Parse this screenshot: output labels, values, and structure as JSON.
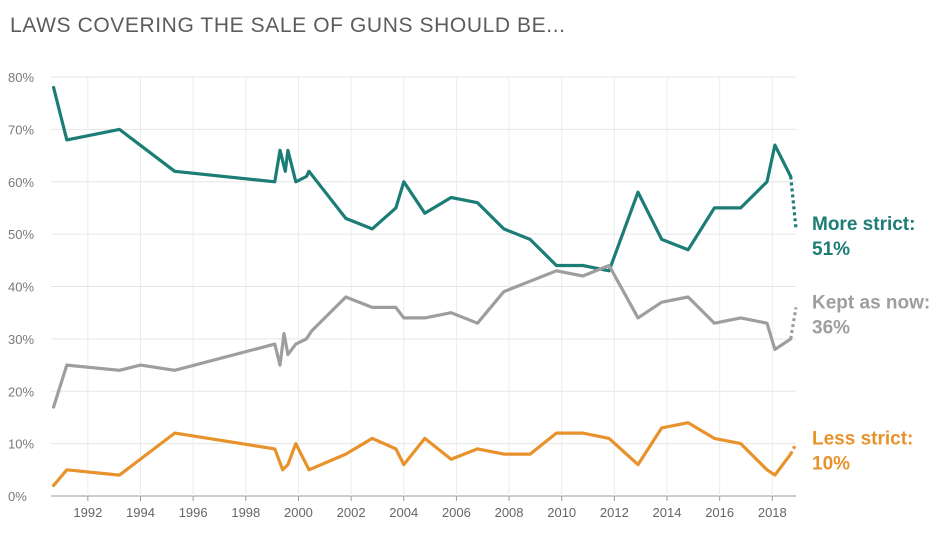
{
  "chart_data": {
    "type": "line",
    "title": "LAWS COVERING THE SALE OF GUNS SHOULD BE...",
    "xlabel": "",
    "ylabel": "",
    "xlim": [
      1990.6,
      2018.9
    ],
    "ylim": [
      0,
      80
    ],
    "y_ticks": [
      "0%",
      "10%",
      "20%",
      "30%",
      "40%",
      "50%",
      "60%",
      "70%",
      "80%"
    ],
    "x_ticks": [
      "1992",
      "1994",
      "1996",
      "1998",
      "2000",
      "2002",
      "2004",
      "2006",
      "2008",
      "2010",
      "2012",
      "2014",
      "2016",
      "2018"
    ],
    "series": [
      {
        "name": "More strict",
        "color": "#1c7c76",
        "points": [
          [
            1990.7,
            78
          ],
          [
            1991.2,
            68
          ],
          [
            1993.2,
            70
          ],
          [
            1995.3,
            62
          ],
          [
            1999.1,
            60
          ],
          [
            1999.3,
            66
          ],
          [
            1999.5,
            62
          ],
          [
            1999.6,
            66
          ],
          [
            1999.9,
            60
          ],
          [
            2000.3,
            61
          ],
          [
            2000.4,
            62
          ],
          [
            2001.8,
            53
          ],
          [
            2002.8,
            51
          ],
          [
            2003.7,
            55
          ],
          [
            2004.0,
            60
          ],
          [
            2004.8,
            54
          ],
          [
            2005.8,
            57
          ],
          [
            2006.8,
            56
          ],
          [
            2007.8,
            51
          ],
          [
            2008.8,
            49
          ],
          [
            2009.8,
            44
          ],
          [
            2010.8,
            44
          ],
          [
            2011.8,
            43
          ],
          [
            2012.9,
            58
          ],
          [
            2013.8,
            49
          ],
          [
            2014.8,
            47
          ],
          [
            2015.8,
            55
          ],
          [
            2016.8,
            55
          ],
          [
            2017.8,
            60
          ],
          [
            2018.1,
            67
          ],
          [
            2018.7,
            61
          ]
        ],
        "projected": [
          [
            2018.7,
            61
          ],
          [
            2018.9,
            51
          ]
        ],
        "end_label": "More strict:",
        "end_value": "51%"
      },
      {
        "name": "Kept as now",
        "color": "#9e9e9e",
        "points": [
          [
            1990.7,
            17
          ],
          [
            1991.2,
            25
          ],
          [
            1993.2,
            24
          ],
          [
            1994.0,
            25
          ],
          [
            1995.3,
            24
          ],
          [
            1999.1,
            29
          ],
          [
            1999.3,
            25
          ],
          [
            1999.45,
            31
          ],
          [
            1999.6,
            27
          ],
          [
            1999.9,
            29
          ],
          [
            2000.3,
            30
          ],
          [
            2000.5,
            31.5
          ],
          [
            2001.8,
            38
          ],
          [
            2002.8,
            36
          ],
          [
            2003.7,
            36
          ],
          [
            2004.0,
            34
          ],
          [
            2004.8,
            34
          ],
          [
            2005.8,
            35
          ],
          [
            2006.8,
            33
          ],
          [
            2007.8,
            39
          ],
          [
            2009.8,
            43
          ],
          [
            2010.8,
            42
          ],
          [
            2011.8,
            44
          ],
          [
            2012.9,
            34
          ],
          [
            2013.8,
            37
          ],
          [
            2014.8,
            38
          ],
          [
            2015.8,
            33
          ],
          [
            2016.8,
            34
          ],
          [
            2017.8,
            33
          ],
          [
            2018.1,
            28
          ],
          [
            2018.7,
            30
          ]
        ],
        "projected": [
          [
            2018.7,
            30
          ],
          [
            2018.9,
            36
          ]
        ],
        "end_label": "Kept as now:",
        "end_value": "36%"
      },
      {
        "name": "Less strict",
        "color": "#e8922c",
        "points": [
          [
            1990.7,
            2
          ],
          [
            1991.2,
            5
          ],
          [
            1993.2,
            4
          ],
          [
            1995.3,
            12
          ],
          [
            1999.1,
            9
          ],
          [
            1999.4,
            5
          ],
          [
            1999.6,
            6
          ],
          [
            1999.9,
            10
          ],
          [
            2000.3,
            6
          ],
          [
            2000.4,
            5
          ],
          [
            2001.8,
            8
          ],
          [
            2002.8,
            11
          ],
          [
            2003.7,
            9
          ],
          [
            2004.0,
            6
          ],
          [
            2004.8,
            11
          ],
          [
            2005.8,
            7
          ],
          [
            2006.8,
            9
          ],
          [
            2007.8,
            8
          ],
          [
            2008.8,
            8
          ],
          [
            2009.8,
            12
          ],
          [
            2010.8,
            12
          ],
          [
            2011.8,
            11
          ],
          [
            2012.9,
            6
          ],
          [
            2013.8,
            13
          ],
          [
            2014.8,
            14
          ],
          [
            2015.8,
            11
          ],
          [
            2016.8,
            10
          ],
          [
            2017.8,
            5
          ],
          [
            2018.1,
            4
          ],
          [
            2018.7,
            8
          ]
        ],
        "projected": [
          [
            2018.7,
            8
          ],
          [
            2018.9,
            10
          ]
        ],
        "end_label": "Less strict:",
        "end_value": "10%"
      }
    ]
  }
}
